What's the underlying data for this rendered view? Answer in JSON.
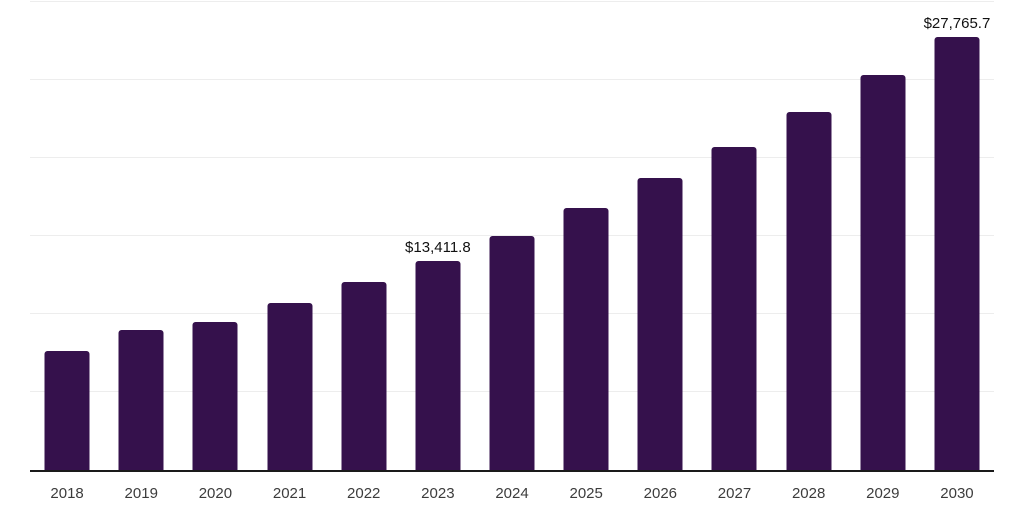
{
  "chart_data": {
    "type": "bar",
    "title": "",
    "xlabel": "",
    "ylabel": "",
    "categories": [
      "2018",
      "2019",
      "2020",
      "2021",
      "2022",
      "2023",
      "2024",
      "2025",
      "2026",
      "2027",
      "2028",
      "2029",
      "2030"
    ],
    "values": [
      7600,
      9000,
      9510,
      10690,
      12030,
      13411.8,
      15020,
      16780,
      18700,
      20730,
      22930,
      25340,
      27765.7
    ],
    "ylim": [
      0,
      30000
    ],
    "gridline_values": [
      5000,
      10000,
      15000,
      20000,
      25000,
      30000
    ],
    "grid": "horizontal",
    "legend": "none",
    "data_labels": [
      {
        "category": "2023",
        "text": "$13,411.8"
      },
      {
        "category": "2030",
        "text": "$27,765.7"
      }
    ],
    "colors": {
      "bar": "#35114C",
      "gridline": "#EDEDED",
      "axis_line": "#1A1A1A",
      "tick_label": "#3C3C3C",
      "data_label": "#111111",
      "background": "#FFFFFF"
    }
  }
}
